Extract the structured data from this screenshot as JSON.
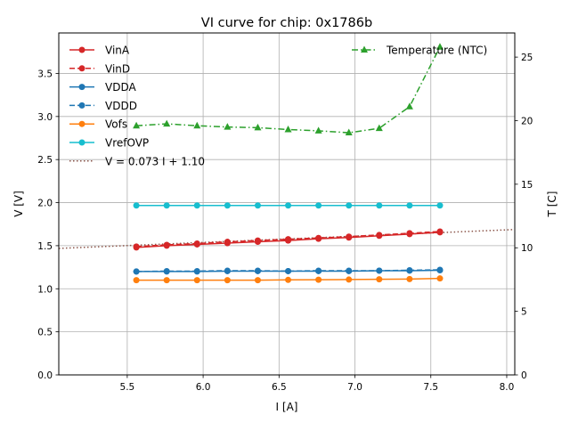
{
  "chart_data": {
    "type": "line",
    "title": "VI curve for chip: 0x1786b",
    "xlabel": "I [A]",
    "ylabel": "V [V]",
    "y2label": "T [C]",
    "xlim": [
      5.049,
      8.053
    ],
    "ylim": [
      0,
      3.97
    ],
    "y2lim": [
      0,
      26.9
    ],
    "xticks": [
      "5.5",
      "6.0",
      "6.5",
      "7.0",
      "7.5",
      "8.0"
    ],
    "xtick_values": [
      5.5,
      6.0,
      6.5,
      7.0,
      7.5,
      8.0
    ],
    "yticks": [
      "0.0",
      "0.5",
      "1.0",
      "1.5",
      "2.0",
      "2.5",
      "3.0",
      "3.5"
    ],
    "ytick_values": [
      0,
      0.5,
      1.0,
      1.5,
      2.0,
      2.5,
      3.0,
      3.5
    ],
    "y2ticks": [
      "0",
      "5",
      "10",
      "15",
      "20",
      "25"
    ],
    "y2tick_values": [
      0,
      5,
      10,
      15,
      20,
      25
    ],
    "grid": true,
    "x": [
      5.56,
      5.76,
      5.96,
      6.16,
      6.36,
      6.56,
      6.76,
      6.96,
      7.16,
      7.36,
      7.56
    ],
    "series": [
      {
        "name": "VinA",
        "axis": "left",
        "color": "#d62728",
        "style": "solid",
        "marker": "circle",
        "values": [
          1.48,
          1.5,
          1.515,
          1.53,
          1.545,
          1.56,
          1.58,
          1.595,
          1.615,
          1.635,
          1.655
        ]
      },
      {
        "name": "VinD",
        "axis": "left",
        "color": "#d62728",
        "style": "dashed",
        "marker": "circle",
        "values": [
          1.49,
          1.51,
          1.525,
          1.545,
          1.56,
          1.575,
          1.59,
          1.605,
          1.625,
          1.645,
          1.665
        ]
      },
      {
        "name": "VDDA",
        "axis": "left",
        "color": "#1f77b4",
        "style": "solid",
        "marker": "circle",
        "values": [
          1.2,
          1.2,
          1.2,
          1.205,
          1.205,
          1.205,
          1.205,
          1.205,
          1.21,
          1.21,
          1.215
        ]
      },
      {
        "name": "VDDD",
        "axis": "left",
        "color": "#1f77b4",
        "style": "dashed",
        "marker": "circle",
        "values": [
          1.2,
          1.205,
          1.205,
          1.21,
          1.21,
          1.205,
          1.21,
          1.21,
          1.21,
          1.215,
          1.22
        ]
      },
      {
        "name": "Vofs",
        "axis": "left",
        "color": "#ff7f0e",
        "style": "solid",
        "marker": "circle",
        "values": [
          1.1,
          1.1,
          1.1,
          1.1,
          1.1,
          1.103,
          1.105,
          1.107,
          1.11,
          1.113,
          1.12
        ]
      },
      {
        "name": "VrefOVP",
        "axis": "left",
        "color": "#17becf",
        "style": "solid",
        "marker": "circle",
        "values": [
          1.967,
          1.967,
          1.967,
          1.967,
          1.967,
          1.967,
          1.967,
          1.967,
          1.967,
          1.967,
          1.967
        ]
      },
      {
        "name": "V = 0.073 I + 1.10",
        "axis": "left",
        "color": "#8c564b",
        "style": "dotted",
        "marker": "none",
        "fit": {
          "slope": 0.073,
          "intercept": 1.1
        }
      },
      {
        "name": "Temperature (NTC)",
        "axis": "right",
        "color": "#2ca02c",
        "style": "dashdot",
        "marker": "triangle",
        "values": [
          19.6,
          19.75,
          19.6,
          19.5,
          19.45,
          19.3,
          19.2,
          19.05,
          19.4,
          21.1,
          25.8
        ]
      }
    ],
    "legend": {
      "left_entries": [
        "VinA",
        "VinD",
        "VDDA",
        "VDDD",
        "Vofs",
        "VrefOVP",
        "V = 0.073 I + 1.10"
      ],
      "left_placement": "top-left",
      "right_entries": [
        "Temperature (NTC)"
      ],
      "right_placement": "top-right"
    }
  }
}
